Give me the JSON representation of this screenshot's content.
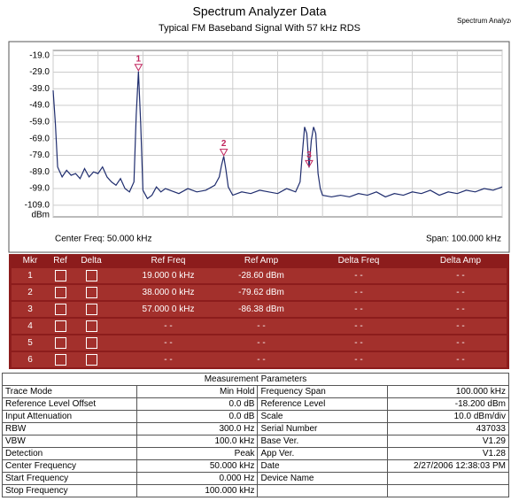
{
  "header": {
    "title": "Spectrum Analyzer Data",
    "subtitle": "Typical FM Baseband Signal  With 57 kHz RDS",
    "corner": "Spectrum Analyzer"
  },
  "chart_data": {
    "type": "line",
    "y_label": "dBm",
    "color": "#1f2d6e",
    "grid": true,
    "x": [
      0,
      0.5,
      1,
      2,
      3,
      4,
      5,
      6,
      7,
      8,
      9,
      10,
      11,
      12,
      13,
      14,
      15,
      16,
      17,
      18,
      18.5,
      19,
      19.5,
      20,
      21,
      22,
      23,
      24,
      25,
      26,
      28,
      30,
      32,
      34,
      36,
      37,
      37.5,
      38,
      38.5,
      39,
      40,
      42,
      44,
      46,
      48,
      50,
      52,
      54,
      55,
      55.5,
      56,
      56.5,
      57,
      57.5,
      58,
      58.5,
      59,
      59.5,
      60,
      62,
      64,
      66,
      68,
      70,
      72,
      74,
      76,
      78,
      80,
      82,
      84,
      86,
      88,
      90,
      92,
      94,
      96,
      98,
      100
    ],
    "values": [
      -40,
      -60,
      -86,
      -92,
      -88,
      -91,
      -90,
      -93,
      -87,
      -92,
      -89,
      -90,
      -86,
      -92,
      -95,
      -97,
      -93,
      -99,
      -101,
      -95,
      -55,
      -28.6,
      -60,
      -100,
      -105,
      -103,
      -98,
      -101,
      -99,
      -100,
      -102,
      -99,
      -101,
      -100,
      -97,
      -92,
      -85,
      -79.6,
      -88,
      -98,
      -103,
      -101,
      -102,
      -100,
      -101,
      -102,
      -99,
      -101,
      -95,
      -78,
      -62,
      -66,
      -86.4,
      -70,
      -62,
      -66,
      -90,
      -99,
      -103,
      -104,
      -103,
      -104,
      -102,
      -103,
      -101,
      -104,
      -102,
      -103,
      -101,
      -102,
      -100,
      -103,
      -101,
      -102,
      -100,
      -101,
      -99,
      -100,
      -98
    ],
    "xlim": [
      0,
      100
    ],
    "ylim": [
      -116,
      -16
    ],
    "yticks": [
      {
        "value": -19,
        "label": "-19.0"
      },
      {
        "value": -29,
        "label": "-29.0"
      },
      {
        "value": -39,
        "label": "-39.0"
      },
      {
        "value": -49,
        "label": "-49.0"
      },
      {
        "value": -59,
        "label": "-59.0"
      },
      {
        "value": -69,
        "label": "-69.0"
      },
      {
        "value": -79,
        "label": "-79.0"
      },
      {
        "value": -89,
        "label": "-89.0"
      },
      {
        "value": -99,
        "label": "-99.0"
      },
      {
        "value": -109,
        "label": "-109.0"
      }
    ],
    "xticks": [
      0,
      10,
      20,
      30,
      40,
      50,
      60,
      70,
      80,
      90,
      100
    ],
    "markers": [
      {
        "label": "1",
        "x": 19,
        "y": -28.6
      },
      {
        "label": "2",
        "x": 38,
        "y": -79.62
      },
      {
        "label": "3",
        "x": 57,
        "y": -86.38
      }
    ],
    "center": "Center Freq: 50.000 kHz",
    "span": "Span: 100.000 kHz"
  },
  "marker_table": {
    "columns": [
      "Mkr",
      "Ref",
      "Delta",
      "Ref Freq",
      "Ref Amp",
      "Delta Freq",
      "Delta Amp"
    ],
    "rows": [
      [
        "1",
        "19.000 0 kHz",
        "-28.60 dBm",
        "- -",
        "- -"
      ],
      [
        "2",
        "38.000 0 kHz",
        "-79.62 dBm",
        "- -",
        "- -"
      ],
      [
        "3",
        "57.000 0 kHz",
        "-86.38 dBm",
        "- -",
        "- -"
      ],
      [
        "4",
        "- -",
        "- -",
        "- -",
        "- -"
      ],
      [
        "5",
        "- -",
        "- -",
        "- -",
        "- -"
      ],
      [
        "6",
        "- -",
        "- -",
        "- -",
        "- -"
      ]
    ]
  },
  "params": {
    "title": "Measurement Parameters",
    "rows": [
      [
        "Trace Mode",
        "Min Hold",
        "Frequency Span",
        "100.000 kHz"
      ],
      [
        "Reference Level Offset",
        "0.0 dB",
        "Reference Level",
        "-18.200  dBm"
      ],
      [
        "Input Attenuation",
        "0.0 dB",
        "Scale",
        "10.0  dBm/div"
      ],
      [
        "RBW",
        "300.0 Hz",
        "Serial Number",
        "437033"
      ],
      [
        "VBW",
        "100.0 kHz",
        "Base Ver.",
        "V1.29"
      ],
      [
        "Detection",
        "Peak",
        "App Ver.",
        "V1.28"
      ],
      [
        "Center Frequency",
        "50.000 kHz",
        "Date",
        "2/27/2006 12:38:03 PM"
      ],
      [
        "Start Frequency",
        "0.000 Hz",
        "Device Name",
        ""
      ],
      [
        "Stop Frequency",
        "100.000 kHz",
        "",
        ""
      ]
    ]
  }
}
